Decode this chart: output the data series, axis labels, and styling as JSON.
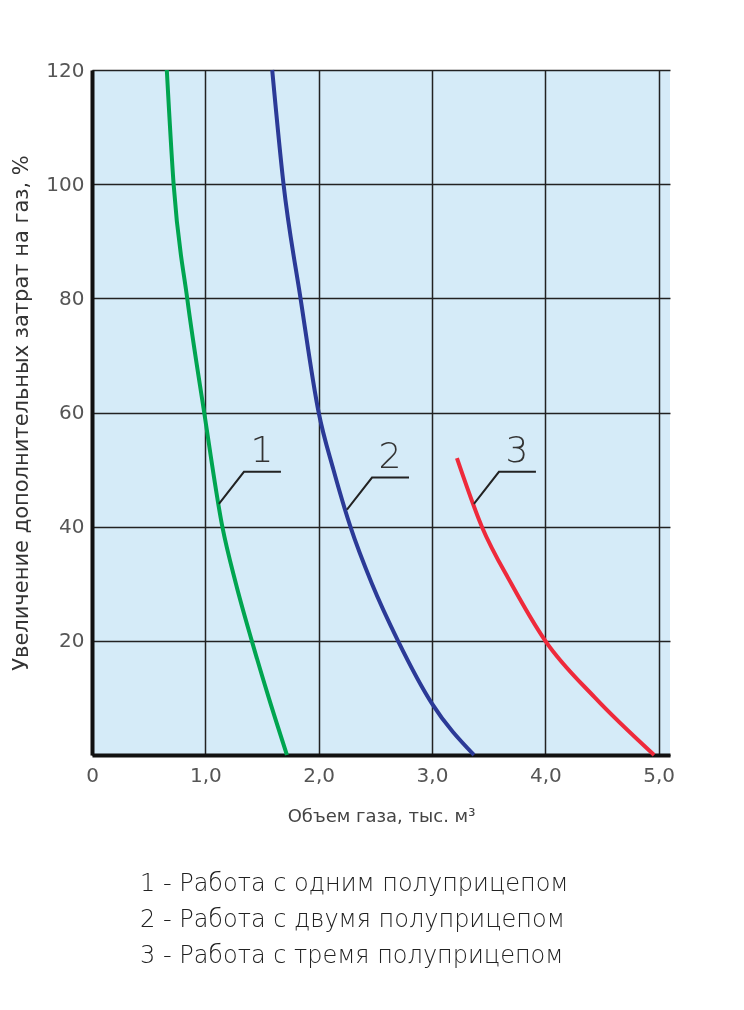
{
  "chart_data": {
    "type": "line",
    "xlabel": "Объем газа, тыс. м³",
    "ylabel": "Увеличение дополнительных затрат на газ, %",
    "xlim": [
      0,
      5.1
    ],
    "ylim": [
      0,
      120
    ],
    "xticks": [
      0,
      {
        "value": 1,
        "label": "1,0"
      },
      {
        "value": 2,
        "label": "2,0"
      },
      {
        "value": 3,
        "label": "3,0"
      },
      {
        "value": 4,
        "label": "4,0"
      },
      {
        "value": 5,
        "label": "5,0"
      }
    ],
    "yticks": [
      {
        "value": 0,
        "label": null
      },
      20,
      40,
      60,
      80,
      100,
      120
    ],
    "grid": true,
    "line_style": "solid",
    "series": [
      {
        "color": "#00a550",
        "x": [
          0.66,
          0.72,
          0.84,
          0.99,
          1.15,
          1.27,
          1.41,
          1.56,
          1.72
        ],
        "values": [
          120,
          100,
          80,
          60,
          40,
          30,
          20,
          10,
          0
        ]
      },
      {
        "color": "#2b3a97",
        "x": [
          1.59,
          1.69,
          1.84,
          2.0,
          2.13,
          2.28,
          2.47,
          2.7,
          3.0,
          3.37
        ],
        "values": [
          120,
          100,
          80,
          60,
          50,
          40,
          30,
          20,
          9,
          0
        ]
      },
      {
        "color": "#ee2a3b",
        "x": [
          3.22,
          3.44,
          3.7,
          4.0,
          4.44,
          4.96
        ],
        "values": [
          52,
          40,
          30,
          20,
          10,
          0
        ]
      }
    ],
    "annotations": [
      {
        "text": "1",
        "x": 1.12,
        "y": 44
      },
      {
        "text": "2",
        "x": 2.25,
        "y": 43
      },
      {
        "text": "3",
        "x": 3.37,
        "y": 44
      },
      "1 - Работа с одним полуприцепом",
      "2 - Работа с двумя полуприцепом",
      "3 - Работа с тремя полуприцепом"
    ]
  }
}
